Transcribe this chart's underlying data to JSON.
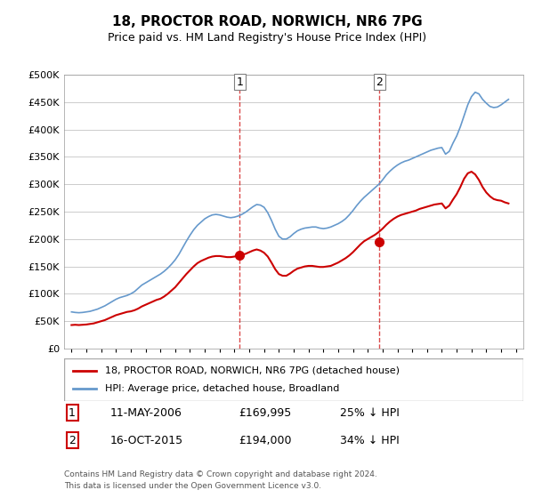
{
  "title": "18, PROCTOR ROAD, NORWICH, NR6 7PG",
  "subtitle": "Price paid vs. HM Land Registry's House Price Index (HPI)",
  "ylabel_ticks": [
    "£0",
    "£50K",
    "£100K",
    "£150K",
    "£200K",
    "£250K",
    "£300K",
    "£350K",
    "£400K",
    "£450K",
    "£500K"
  ],
  "ytick_values": [
    0,
    50000,
    100000,
    150000,
    200000,
    250000,
    300000,
    350000,
    400000,
    450000,
    500000
  ],
  "xlim": [
    1994.5,
    2025.5
  ],
  "ylim": [
    0,
    500000
  ],
  "legend_line1": "18, PROCTOR ROAD, NORWICH, NR6 7PG (detached house)",
  "legend_line2": "HPI: Average price, detached house, Broadland",
  "transaction1_label": "1",
  "transaction1_date": "11-MAY-2006",
  "transaction1_price": "£169,995",
  "transaction1_pct": "25% ↓ HPI",
  "transaction1_year": 2006.36,
  "transaction2_label": "2",
  "transaction2_date": "16-OCT-2015",
  "transaction2_price": "£194,000",
  "transaction2_pct": "34% ↓ HPI",
  "transaction2_year": 2015.79,
  "footer1": "Contains HM Land Registry data © Crown copyright and database right 2024.",
  "footer2": "This data is licensed under the Open Government Licence v3.0.",
  "red_color": "#cc0000",
  "blue_color": "#6699cc",
  "hpi_data": {
    "years": [
      1995.0,
      1995.25,
      1995.5,
      1995.75,
      1996.0,
      1996.25,
      1996.5,
      1996.75,
      1997.0,
      1997.25,
      1997.5,
      1997.75,
      1998.0,
      1998.25,
      1998.5,
      1998.75,
      1999.0,
      1999.25,
      1999.5,
      1999.75,
      2000.0,
      2000.25,
      2000.5,
      2000.75,
      2001.0,
      2001.25,
      2001.5,
      2001.75,
      2002.0,
      2002.25,
      2002.5,
      2002.75,
      2003.0,
      2003.25,
      2003.5,
      2003.75,
      2004.0,
      2004.25,
      2004.5,
      2004.75,
      2005.0,
      2005.25,
      2005.5,
      2005.75,
      2006.0,
      2006.25,
      2006.5,
      2006.75,
      2007.0,
      2007.25,
      2007.5,
      2007.75,
      2008.0,
      2008.25,
      2008.5,
      2008.75,
      2009.0,
      2009.25,
      2009.5,
      2009.75,
      2010.0,
      2010.25,
      2010.5,
      2010.75,
      2011.0,
      2011.25,
      2011.5,
      2011.75,
      2012.0,
      2012.25,
      2012.5,
      2012.75,
      2013.0,
      2013.25,
      2013.5,
      2013.75,
      2014.0,
      2014.25,
      2014.5,
      2014.75,
      2015.0,
      2015.25,
      2015.5,
      2015.75,
      2016.0,
      2016.25,
      2016.5,
      2016.75,
      2017.0,
      2017.25,
      2017.5,
      2017.75,
      2018.0,
      2018.25,
      2018.5,
      2018.75,
      2019.0,
      2019.25,
      2019.5,
      2019.75,
      2020.0,
      2020.25,
      2020.5,
      2020.75,
      2021.0,
      2021.25,
      2021.5,
      2021.75,
      2022.0,
      2022.25,
      2022.5,
      2022.75,
      2023.0,
      2023.25,
      2023.5,
      2023.75,
      2024.0,
      2024.25,
      2024.5
    ],
    "values": [
      67000,
      66000,
      65500,
      66000,
      67000,
      68000,
      70000,
      72000,
      75000,
      78000,
      82000,
      86000,
      90000,
      93000,
      95000,
      97000,
      100000,
      104000,
      110000,
      116000,
      120000,
      124000,
      128000,
      132000,
      136000,
      141000,
      147000,
      154000,
      162000,
      172000,
      184000,
      196000,
      207000,
      217000,
      225000,
      231000,
      237000,
      241000,
      244000,
      245000,
      244000,
      242000,
      240000,
      239000,
      240000,
      242000,
      245000,
      249000,
      254000,
      259000,
      263000,
      262000,
      258000,
      248000,
      234000,
      218000,
      205000,
      200000,
      200000,
      204000,
      210000,
      215000,
      218000,
      220000,
      221000,
      222000,
      222000,
      220000,
      219000,
      220000,
      222000,
      225000,
      228000,
      232000,
      237000,
      244000,
      252000,
      261000,
      269000,
      276000,
      282000,
      288000,
      294000,
      300000,
      308000,
      317000,
      324000,
      330000,
      335000,
      339000,
      342000,
      344000,
      347000,
      350000,
      353000,
      356000,
      359000,
      362000,
      364000,
      366000,
      367000,
      355000,
      360000,
      375000,
      388000,
      405000,
      425000,
      445000,
      460000,
      468000,
      465000,
      455000,
      448000,
      442000,
      440000,
      441000,
      445000,
      450000,
      455000
    ]
  },
  "red_data": {
    "years": [
      1995.0,
      1995.25,
      1995.5,
      1995.75,
      1996.0,
      1996.25,
      1996.5,
      1996.75,
      1997.0,
      1997.25,
      1997.5,
      1997.75,
      1998.0,
      1998.25,
      1998.5,
      1998.75,
      1999.0,
      1999.25,
      1999.5,
      1999.75,
      2000.0,
      2000.25,
      2000.5,
      2000.75,
      2001.0,
      2001.25,
      2001.5,
      2001.75,
      2002.0,
      2002.25,
      2002.5,
      2002.75,
      2003.0,
      2003.25,
      2003.5,
      2003.75,
      2004.0,
      2004.25,
      2004.5,
      2004.75,
      2005.0,
      2005.25,
      2005.5,
      2005.75,
      2006.0,
      2006.25,
      2006.5,
      2006.75,
      2007.0,
      2007.25,
      2007.5,
      2007.75,
      2008.0,
      2008.25,
      2008.5,
      2008.75,
      2009.0,
      2009.25,
      2009.5,
      2009.75,
      2010.0,
      2010.25,
      2010.5,
      2010.75,
      2011.0,
      2011.25,
      2011.5,
      2011.75,
      2012.0,
      2012.25,
      2012.5,
      2012.75,
      2013.0,
      2013.25,
      2013.5,
      2013.75,
      2014.0,
      2014.25,
      2014.5,
      2014.75,
      2015.0,
      2015.25,
      2015.5,
      2015.75,
      2016.0,
      2016.25,
      2016.5,
      2016.75,
      2017.0,
      2017.25,
      2017.5,
      2017.75,
      2018.0,
      2018.25,
      2018.5,
      2018.75,
      2019.0,
      2019.25,
      2019.5,
      2019.75,
      2020.0,
      2020.25,
      2020.5,
      2020.75,
      2021.0,
      2021.25,
      2021.5,
      2021.75,
      2022.0,
      2022.25,
      2022.5,
      2022.75,
      2023.0,
      2023.25,
      2023.5,
      2023.75,
      2024.0,
      2024.25,
      2024.5
    ],
    "values": [
      43000,
      43500,
      43000,
      43500,
      44000,
      45000,
      46000,
      48000,
      50000,
      52000,
      55000,
      58000,
      61000,
      63000,
      65000,
      67000,
      68000,
      70000,
      73000,
      77000,
      80000,
      83000,
      86000,
      89000,
      91000,
      95000,
      100000,
      106000,
      112000,
      120000,
      128000,
      136000,
      143000,
      150000,
      156000,
      160000,
      163000,
      166000,
      168000,
      169000,
      169000,
      168000,
      167000,
      167000,
      168000,
      169500,
      171000,
      173000,
      176000,
      179000,
      181000,
      179000,
      175000,
      168000,
      157000,
      145000,
      136000,
      133000,
      133000,
      137000,
      142000,
      146000,
      148000,
      150000,
      151000,
      151000,
      150000,
      149000,
      149000,
      150000,
      151000,
      154000,
      157000,
      161000,
      165000,
      170000,
      176000,
      183000,
      190000,
      196000,
      200000,
      204000,
      208000,
      213000,
      219000,
      226000,
      232000,
      237000,
      241000,
      244000,
      246000,
      248000,
      250000,
      252000,
      255000,
      257000,
      259000,
      261000,
      263000,
      264000,
      265000,
      256000,
      261000,
      272000,
      282000,
      295000,
      310000,
      320000,
      323000,
      318000,
      308000,
      295000,
      285000,
      278000,
      273000,
      271000,
      270000,
      267000,
      265000
    ]
  }
}
